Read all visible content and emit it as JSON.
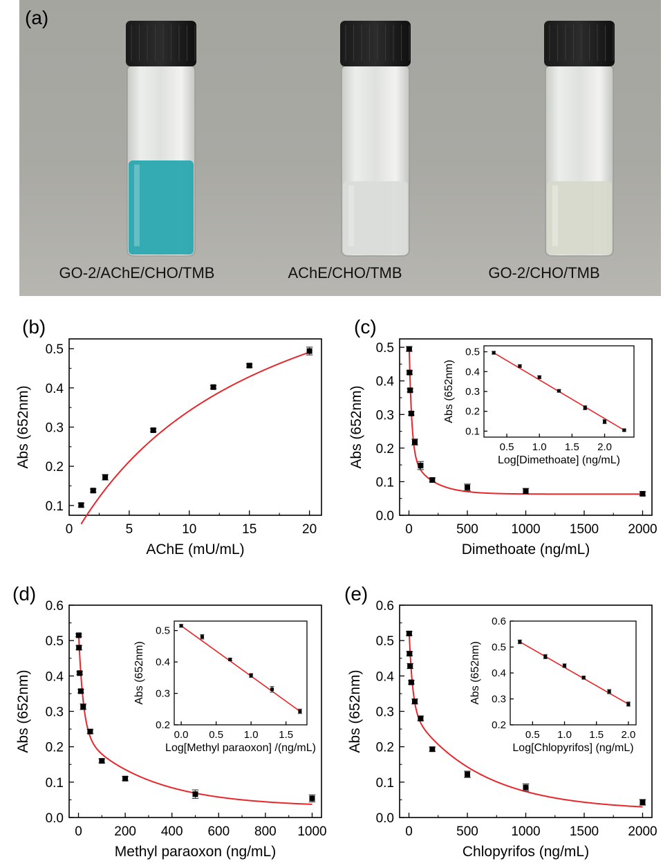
{
  "photo": {
    "letter": "(a)",
    "vials": [
      {
        "caption": "GO-2/AChE/CHO/TMB",
        "liquid_color": "#2aa7b0"
      },
      {
        "caption": "AChE/CHO/TMB",
        "liquid_color": "#d9dcd8"
      },
      {
        "caption": "GO-2/CHO/TMB",
        "liquid_color": "#d7d9cc"
      }
    ],
    "cap_color": "#111111",
    "background_color": "#a8a8a3"
  },
  "colors": {
    "fit": "#e8262a",
    "marker": "#000000",
    "axis": "#000000"
  },
  "chart_data": [
    {
      "id": "b",
      "letter": "(b)",
      "type": "scatter",
      "xlabel": "AChE (mU/mL)",
      "ylabel": "Abs (652nm)",
      "xlim": [
        0,
        21
      ],
      "ylim": [
        0.075,
        0.525
      ],
      "xticks": [
        0,
        5,
        10,
        15,
        20
      ],
      "yticks": [
        0.1,
        0.2,
        0.3,
        0.4,
        0.5
      ],
      "xtick_labels": [
        "0",
        "5",
        "10",
        "15",
        "20"
      ],
      "ytick_labels": [
        "0.1",
        "0.2",
        "0.3",
        "0.4",
        "0.5"
      ],
      "x": [
        1,
        2,
        3,
        7,
        12,
        15,
        20
      ],
      "y": [
        0.101,
        0.138,
        0.172,
        0.292,
        0.402,
        0.457,
        0.494
      ],
      "err": [
        0.005,
        0.004,
        0.007,
        0.004,
        0.004,
        0.004,
        0.01
      ],
      "fit": {
        "kind": "saturation",
        "ymax": 0.874,
        "k": 15.6
      }
    },
    {
      "id": "c",
      "letter": "(c)",
      "type": "scatter",
      "xlabel": "Dimethoate (ng/mL)",
      "ylabel": "Abs (652nm)",
      "xlim": [
        -80,
        2080
      ],
      "ylim": [
        0.0,
        0.525
      ],
      "xticks": [
        0,
        500,
        1000,
        1500,
        2000
      ],
      "yticks": [
        0.0,
        0.1,
        0.2,
        0.3,
        0.4,
        0.5
      ],
      "xtick_labels": [
        "0",
        "500",
        "1000",
        "1500",
        "2000"
      ],
      "ytick_labels": [
        "0.0",
        "0.1",
        "0.2",
        "0.3",
        "0.4",
        "0.5"
      ],
      "x": [
        2,
        5,
        10,
        20,
        50,
        100,
        200,
        500,
        1000,
        2000
      ],
      "y": [
        0.495,
        0.425,
        0.372,
        0.303,
        0.218,
        0.148,
        0.105,
        0.083,
        0.072,
        0.064
      ],
      "err": [
        0.007,
        0.005,
        0.005,
        0.005,
        0.009,
        0.012,
        0.006,
        0.01,
        0.008,
        0.006
      ],
      "fit": {
        "kind": "decay",
        "y0": 0.063,
        "a1": 0.322,
        "t1": 22,
        "a2": 0.118,
        "t2": 180,
        "x0": 2
      },
      "inset": {
        "type": "scatter",
        "xlabel": "Log[Dimethoate] (ng/mL)",
        "ylabel": "Abs (652nm)",
        "xlim": [
          0.15,
          2.45
        ],
        "ylim": [
          0.07,
          0.53
        ],
        "xticks": [
          0.5,
          1.0,
          1.5,
          2.0
        ],
        "yticks": [
          0.1,
          0.2,
          0.3,
          0.4,
          0.5
        ],
        "xtick_labels": [
          "0.5",
          "1.0",
          "1.5",
          "2.0"
        ],
        "ytick_labels": [
          "0.1",
          "0.2",
          "0.3",
          "0.4",
          "0.5"
        ],
        "x": [
          0.3,
          0.7,
          1.0,
          1.3,
          1.7,
          2.0,
          2.3
        ],
        "y": [
          0.495,
          0.428,
          0.372,
          0.303,
          0.218,
          0.148,
          0.105
        ],
        "err": [
          0.007,
          0.006,
          0.007,
          0.006,
          0.01,
          0.01,
          0.005
        ],
        "fit_line": [
          [
            0.3,
            0.495
          ],
          [
            2.3,
            0.105
          ]
        ]
      }
    },
    {
      "id": "d",
      "letter": "(d)",
      "type": "scatter",
      "xlabel": "Methyl paraoxon (ng/mL)",
      "ylabel": "Abs (652nm)",
      "xlim": [
        -40,
        1040
      ],
      "ylim": [
        0.0,
        0.6
      ],
      "xticks": [
        0,
        200,
        400,
        600,
        800,
        1000
      ],
      "yticks": [
        0.0,
        0.1,
        0.2,
        0.3,
        0.4,
        0.5,
        0.6
      ],
      "xtick_labels": [
        "0",
        "200",
        "400",
        "600",
        "800",
        "1000"
      ],
      "ytick_labels": [
        "0.0",
        "0.1",
        "0.2",
        "0.3",
        "0.4",
        "0.5",
        "0.6"
      ],
      "x": [
        1,
        2,
        5,
        10,
        20,
        50,
        100,
        200,
        500,
        1000
      ],
      "y": [
        0.515,
        0.48,
        0.408,
        0.357,
        0.313,
        0.243,
        0.16,
        0.11,
        0.066,
        0.054
      ],
      "err": [
        0.004,
        0.006,
        0.004,
        0.005,
        0.008,
        0.006,
        0.006,
        0.006,
        0.012,
        0.01
      ],
      "fit": {
        "kind": "decay",
        "y0": 0.03,
        "a1": 0.28,
        "t1": 20,
        "a2": 0.205,
        "t2": 300,
        "x0": 1
      },
      "inset": {
        "type": "scatter",
        "xlabel": "Log[Methyl paraoxon] /(ng/mL)",
        "ylabel": "Abs (652nm)",
        "xlim": [
          -0.1,
          1.8
        ],
        "ylim": [
          0.2,
          0.53
        ],
        "xticks": [
          0.0,
          0.5,
          1.0,
          1.5
        ],
        "yticks": [
          0.2,
          0.3,
          0.4,
          0.5
        ],
        "xtick_labels": [
          "0.0",
          "0.5",
          "1.0",
          "1.5"
        ],
        "ytick_labels": [
          "0.2",
          "0.3",
          "0.4",
          "0.5"
        ],
        "x": [
          0.0,
          0.3,
          0.7,
          1.0,
          1.3,
          1.7
        ],
        "y": [
          0.515,
          0.48,
          0.408,
          0.357,
          0.313,
          0.243
        ],
        "err": [
          0.004,
          0.007,
          0.004,
          0.006,
          0.009,
          0.007
        ],
        "fit_line": [
          [
            0.0,
            0.515
          ],
          [
            1.7,
            0.243
          ]
        ]
      }
    },
    {
      "id": "e",
      "letter": "(e)",
      "type": "scatter",
      "xlabel": "Chlopyrifos (ng/mL)",
      "ylabel": "Abs (652nm)",
      "xlim": [
        -80,
        2080
      ],
      "ylim": [
        0.0,
        0.6
      ],
      "xticks": [
        0,
        500,
        1000,
        1500,
        2000
      ],
      "yticks": [
        0.0,
        0.1,
        0.2,
        0.3,
        0.4,
        0.5,
        0.6
      ],
      "xtick_labels": [
        "0",
        "500",
        "1000",
        "1500",
        "2000"
      ],
      "ytick_labels": [
        "0.0",
        "0.1",
        "0.2",
        "0.3",
        "0.4",
        "0.5",
        "0.6"
      ],
      "x": [
        2,
        5,
        10,
        20,
        50,
        100,
        200,
        500,
        1000,
        2000
      ],
      "y": [
        0.52,
        0.463,
        0.428,
        0.382,
        0.328,
        0.28,
        0.193,
        0.122,
        0.085,
        0.043
      ],
      "err": [
        0.006,
        0.006,
        0.007,
        0.005,
        0.007,
        0.007,
        0.006,
        0.009,
        0.01,
        0.008
      ],
      "fit": {
        "kind": "decay",
        "y0": 0.02,
        "a1": 0.22,
        "t1": 30,
        "a2": 0.282,
        "t2": 600,
        "x0": 2
      },
      "inset": {
        "type": "scatter",
        "xlabel": "Log[Chlopyrifos] (ng/mL)",
        "ylabel": "Abs (652nm)",
        "xlim": [
          0.15,
          2.12
        ],
        "ylim": [
          0.2,
          0.6
        ],
        "xticks": [
          0.5,
          1.0,
          1.5,
          2.0
        ],
        "yticks": [
          0.2,
          0.3,
          0.4,
          0.5,
          0.6
        ],
        "xtick_labels": [
          "0.5",
          "1.0",
          "1.5",
          "2.0"
        ],
        "ytick_labels": [
          "0.2",
          "0.3",
          "0.4",
          "0.5",
          "0.6"
        ],
        "x": [
          0.3,
          0.7,
          1.0,
          1.3,
          1.7,
          2.0
        ],
        "y": [
          0.52,
          0.463,
          0.428,
          0.382,
          0.328,
          0.28
        ],
        "err": [
          0.007,
          0.008,
          0.007,
          0.006,
          0.008,
          0.008
        ],
        "fit_line": [
          [
            0.3,
            0.52
          ],
          [
            2.0,
            0.28
          ]
        ]
      }
    }
  ]
}
